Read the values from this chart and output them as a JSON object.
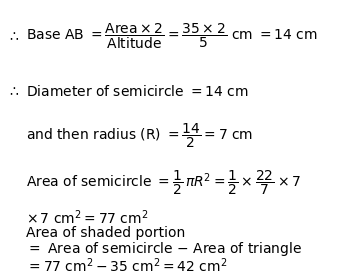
{
  "background_color": "#ffffff",
  "figsize": [
    3.43,
    2.77
  ],
  "dpi": 100,
  "font_size": 10.0
}
